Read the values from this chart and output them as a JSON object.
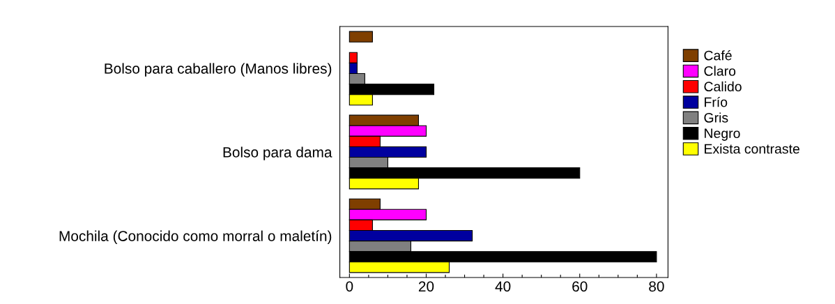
{
  "chart_data": {
    "type": "bar",
    "orientation": "horizontal",
    "categories": [
      "Bolso para caballero (Manos libres)",
      "Bolso para dama",
      "Mochila (Conocido como morral o maletín)"
    ],
    "series": [
      {
        "name": "Café",
        "color": "#7f3f00",
        "values": [
          6,
          18,
          8
        ]
      },
      {
        "name": "Claro",
        "color": "#ff00ff",
        "values": [
          null,
          20,
          20
        ]
      },
      {
        "name": "Calido",
        "color": "#ff0000",
        "values": [
          2,
          8,
          6
        ]
      },
      {
        "name": "Frío",
        "color": "#00009f",
        "values": [
          2,
          20,
          32
        ]
      },
      {
        "name": "Gris",
        "color": "#808080",
        "values": [
          4,
          10,
          16
        ]
      },
      {
        "name": "Negro",
        "color": "#000000",
        "values": [
          22,
          60,
          80
        ]
      },
      {
        "name": "Exista contraste",
        "color": "#ffff00",
        "values": [
          6,
          18,
          26
        ]
      }
    ],
    "xlim": [
      -2.5,
      83
    ],
    "xticks": [
      0,
      {
        "value": 5,
        "label": null
      },
      {
        "value": 10,
        "label": null
      },
      {
        "value": 15,
        "label": null
      },
      20,
      {
        "value": 25,
        "label": null
      },
      {
        "value": 30,
        "label": null
      },
      {
        "value": 35,
        "label": null
      },
      40,
      {
        "value": 45,
        "label": null
      },
      {
        "value": 50,
        "label": null
      },
      {
        "value": 55,
        "label": null
      },
      60,
      {
        "value": 65,
        "label": null
      },
      {
        "value": 70,
        "label": null
      },
      {
        "value": 75,
        "label": null
      },
      80
    ],
    "grid": false,
    "legend": "right"
  }
}
